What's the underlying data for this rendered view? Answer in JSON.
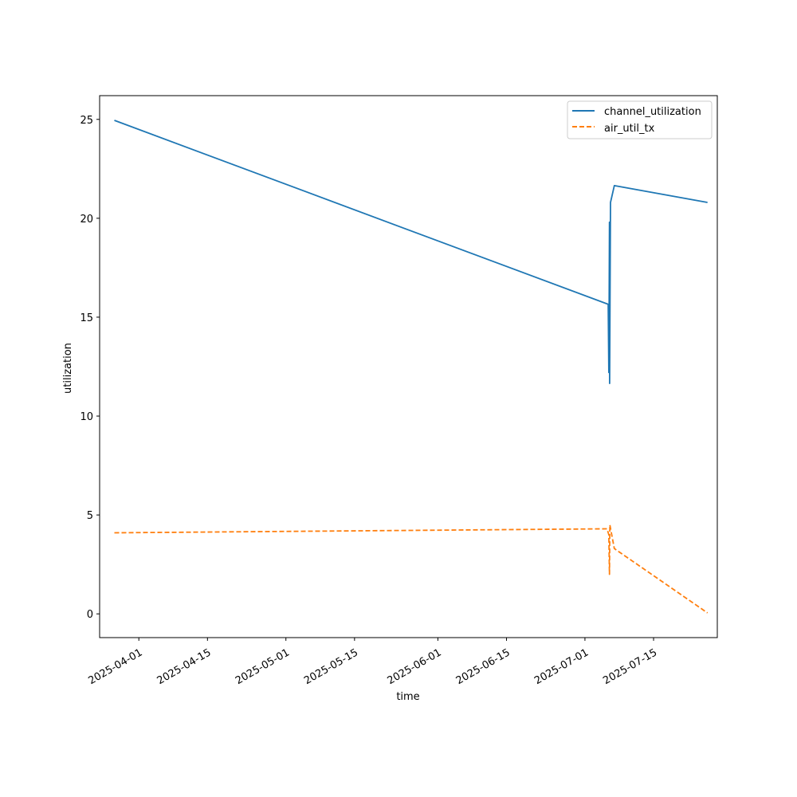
{
  "chart_data": {
    "type": "line",
    "title": "",
    "xlabel": "time",
    "ylabel": "utilization",
    "x_ticks": [
      "2025-04-01",
      "2025-04-15",
      "2025-05-01",
      "2025-05-15",
      "2025-06-01",
      "2025-06-15",
      "2025-07-01",
      "2025-07-15"
    ],
    "y_ticks": [
      0,
      5,
      10,
      15,
      20,
      25
    ],
    "xlim": [
      "2025-03-24T00:00",
      "2025-07-28T00:00"
    ],
    "ylim": [
      -1.2,
      26.2
    ],
    "grid": false,
    "legend_position": "top-right",
    "series": [
      {
        "name": "channel_utilization",
        "color": "#1f77b4",
        "dash": "solid",
        "points": [
          [
            "2025-03-27T00:00",
            24.95
          ],
          [
            "2025-07-05T18:00",
            15.65
          ],
          [
            "2025-07-05T21:00",
            12.2
          ],
          [
            "2025-07-06T00:00",
            19.8
          ],
          [
            "2025-07-06T01:00",
            11.65
          ],
          [
            "2025-07-06T05:00",
            20.8
          ],
          [
            "2025-07-07T00:00",
            21.65
          ],
          [
            "2025-07-26T00:00",
            20.8
          ]
        ]
      },
      {
        "name": "air_util_tx",
        "color": "#ff7f0e",
        "dash": "dashed",
        "points": [
          [
            "2025-03-27T00:00",
            4.1
          ],
          [
            "2025-07-05T12:00",
            4.3
          ],
          [
            "2025-07-05T21:00",
            4.0
          ],
          [
            "2025-07-06T00:00",
            2.0
          ],
          [
            "2025-07-06T02:00",
            4.5
          ],
          [
            "2025-07-07T00:00",
            3.3
          ],
          [
            "2025-07-26T00:00",
            0.05
          ]
        ]
      }
    ]
  }
}
